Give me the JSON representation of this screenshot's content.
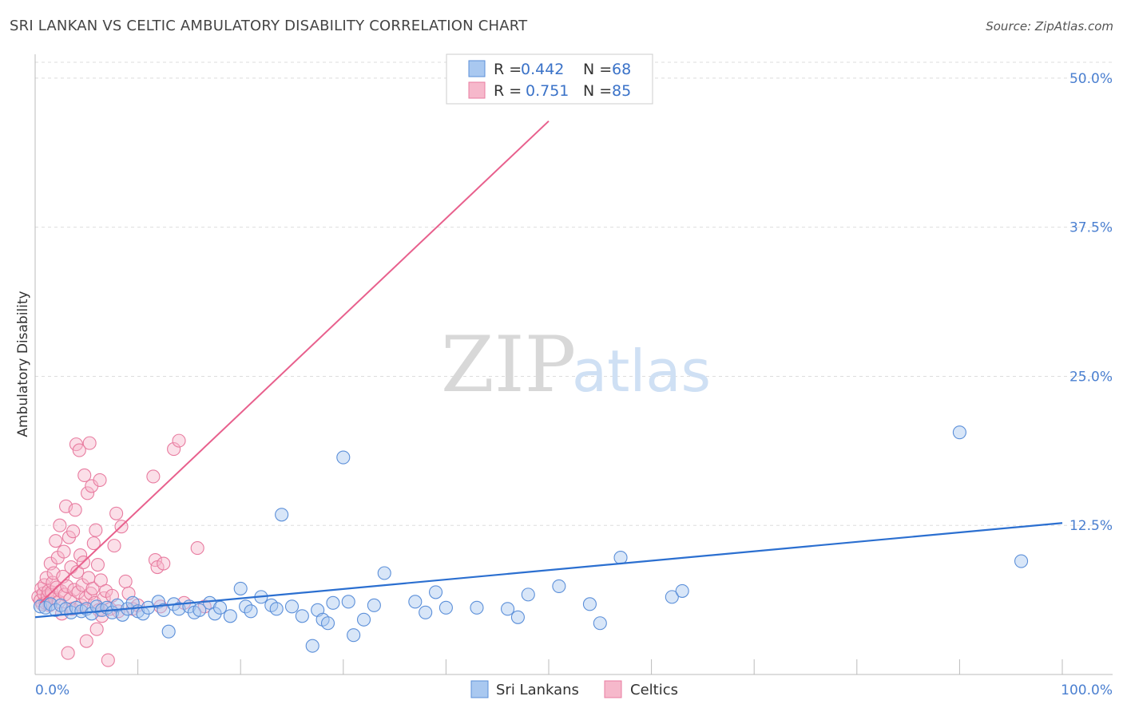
{
  "title": "SRI LANKAN VS CELTIC AMBULATORY DISABILITY CORRELATION CHART",
  "source": "Source: ZipAtlas.com",
  "watermark": {
    "zip": "ZIP",
    "atlas": "atlas"
  },
  "legend": {
    "rows": [
      {
        "r_label": "R =",
        "r_value": "0.442",
        "n_label": "N =",
        "n_value": "68"
      },
      {
        "r_label": "R =",
        "r_value": "0.751",
        "n_label": "N =",
        "n_value": "85"
      }
    ]
  },
  "bottom_legend": [
    "Sri Lankans",
    "Celtics"
  ],
  "colors": {
    "blue_fill": "#a9c8f0",
    "blue_stroke": "#5b8fd9",
    "blue_line": "#2b6fd0",
    "pink_fill": "#f6b8cb",
    "pink_stroke": "#e87ca0",
    "pink_line": "#e8608d",
    "tick_text": "#4a7fd0",
    "grid": "#dddddd"
  },
  "chart_data": {
    "type": "scatter",
    "title": "SRI LANKAN VS CELTIC AMBULATORY DISABILITY CORRELATION CHART",
    "xlabel": "",
    "ylabel": "Ambulatory Disability",
    "xlim": [
      0,
      100
    ],
    "ylim": [
      0,
      52
    ],
    "x_tick_labels": [
      "0.0%",
      "100.0%"
    ],
    "y_ticks": [
      12.5,
      25.0,
      37.5,
      50.0
    ],
    "y_tick_labels": [
      "12.5%",
      "25.0%",
      "37.5%",
      "50.0%"
    ],
    "grid": true,
    "legend_position": "top-center",
    "series": [
      {
        "name": "Sri Lankans",
        "r": 0.442,
        "n": 68,
        "trend": {
          "x": [
            0,
            100
          ],
          "y": [
            4.8,
            12.7
          ]
        },
        "points": [
          [
            0.5,
            5.7
          ],
          [
            1.0,
            5.6
          ],
          [
            1.5,
            5.9
          ],
          [
            2.0,
            5.4
          ],
          [
            2.5,
            5.8
          ],
          [
            3.0,
            5.5
          ],
          [
            3.5,
            5.2
          ],
          [
            4.0,
            5.6
          ],
          [
            4.5,
            5.3
          ],
          [
            5.0,
            5.5
          ],
          [
            5.5,
            5.1
          ],
          [
            6.0,
            5.7
          ],
          [
            6.5,
            5.4
          ],
          [
            7.0,
            5.6
          ],
          [
            7.5,
            5.2
          ],
          [
            8.0,
            5.8
          ],
          [
            8.5,
            5.0
          ],
          [
            9.0,
            5.5
          ],
          [
            9.5,
            6.0
          ],
          [
            10.0,
            5.3
          ],
          [
            10.5,
            5.1
          ],
          [
            11.0,
            5.6
          ],
          [
            12.0,
            6.1
          ],
          [
            12.5,
            5.4
          ],
          [
            13.0,
            3.6
          ],
          [
            13.5,
            5.9
          ],
          [
            14.0,
            5.5
          ],
          [
            15.0,
            5.7
          ],
          [
            15.5,
            5.2
          ],
          [
            16.0,
            5.4
          ],
          [
            17.0,
            6.0
          ],
          [
            17.5,
            5.1
          ],
          [
            18.0,
            5.6
          ],
          [
            19.0,
            4.9
          ],
          [
            20.0,
            7.2
          ],
          [
            20.5,
            5.7
          ],
          [
            21.0,
            5.3
          ],
          [
            22.0,
            6.5
          ],
          [
            23.0,
            5.8
          ],
          [
            23.5,
            5.5
          ],
          [
            24.0,
            13.4
          ],
          [
            25.0,
            5.7
          ],
          [
            26.0,
            4.9
          ],
          [
            27.0,
            2.4
          ],
          [
            27.5,
            5.4
          ],
          [
            28.0,
            4.6
          ],
          [
            28.5,
            4.3
          ],
          [
            29.0,
            6.0
          ],
          [
            30.0,
            18.2
          ],
          [
            30.5,
            6.1
          ],
          [
            31.0,
            3.3
          ],
          [
            32.0,
            4.6
          ],
          [
            33.0,
            5.8
          ],
          [
            34.0,
            8.5
          ],
          [
            37.0,
            6.1
          ],
          [
            38.0,
            5.2
          ],
          [
            39.0,
            6.9
          ],
          [
            40.0,
            5.6
          ],
          [
            43.0,
            5.6
          ],
          [
            46.0,
            5.5
          ],
          [
            47.0,
            4.8
          ],
          [
            48.0,
            6.7
          ],
          [
            51.0,
            7.4
          ],
          [
            54.0,
            5.9
          ],
          [
            55.0,
            4.3
          ],
          [
            57.0,
            9.8
          ],
          [
            62.0,
            6.5
          ],
          [
            63.0,
            7.0
          ],
          [
            90.0,
            20.3
          ],
          [
            96.0,
            9.5
          ]
        ]
      },
      {
        "name": "Celtics",
        "r": 0.751,
        "n": 85,
        "trend": {
          "x": [
            0.5,
            50.0
          ],
          "y": [
            6.0,
            46.4
          ]
        },
        "points": [
          [
            0.3,
            6.5
          ],
          [
            0.5,
            6.2
          ],
          [
            0.6,
            7.2
          ],
          [
            0.7,
            5.9
          ],
          [
            0.8,
            6.8
          ],
          [
            0.9,
            7.5
          ],
          [
            1.0,
            6.0
          ],
          [
            1.1,
            8.1
          ],
          [
            1.2,
            6.6
          ],
          [
            1.3,
            7.0
          ],
          [
            1.4,
            5.8
          ],
          [
            1.5,
            9.3
          ],
          [
            1.6,
            6.9
          ],
          [
            1.7,
            7.7
          ],
          [
            1.8,
            8.5
          ],
          [
            1.9,
            6.4
          ],
          [
            2.0,
            11.2
          ],
          [
            2.1,
            7.3
          ],
          [
            2.2,
            9.8
          ],
          [
            2.3,
            6.1
          ],
          [
            2.4,
            12.5
          ],
          [
            2.5,
            7.0
          ],
          [
            2.6,
            5.1
          ],
          [
            2.7,
            8.2
          ],
          [
            2.8,
            10.3
          ],
          [
            2.9,
            6.7
          ],
          [
            3.0,
            14.1
          ],
          [
            3.1,
            7.4
          ],
          [
            3.2,
            1.8
          ],
          [
            3.3,
            11.5
          ],
          [
            3.4,
            6.3
          ],
          [
            3.5,
            9.0
          ],
          [
            3.6,
            5.5
          ],
          [
            3.7,
            12.0
          ],
          [
            3.8,
            7.1
          ],
          [
            3.9,
            13.8
          ],
          [
            4.0,
            19.3
          ],
          [
            4.1,
            8.6
          ],
          [
            4.2,
            6.9
          ],
          [
            4.3,
            18.8
          ],
          [
            4.4,
            10.0
          ],
          [
            4.5,
            5.8
          ],
          [
            4.6,
            7.5
          ],
          [
            4.7,
            9.4
          ],
          [
            4.8,
            16.7
          ],
          [
            4.9,
            6.4
          ],
          [
            5.0,
            2.8
          ],
          [
            5.1,
            15.2
          ],
          [
            5.2,
            8.1
          ],
          [
            5.3,
            19.4
          ],
          [
            5.4,
            6.8
          ],
          [
            5.5,
            15.8
          ],
          [
            5.6,
            7.2
          ],
          [
            5.7,
            11.0
          ],
          [
            5.8,
            6.0
          ],
          [
            5.9,
            12.1
          ],
          [
            6.0,
            3.8
          ],
          [
            6.1,
            9.2
          ],
          [
            6.2,
            5.4
          ],
          [
            6.3,
            16.3
          ],
          [
            6.4,
            7.9
          ],
          [
            6.5,
            4.9
          ],
          [
            6.7,
            6.4
          ],
          [
            6.9,
            7.0
          ],
          [
            7.1,
            1.2
          ],
          [
            7.3,
            5.5
          ],
          [
            7.5,
            6.6
          ],
          [
            7.7,
            10.8
          ],
          [
            7.9,
            13.5
          ],
          [
            8.1,
            5.3
          ],
          [
            8.4,
            12.4
          ],
          [
            8.8,
            7.8
          ],
          [
            9.1,
            6.8
          ],
          [
            9.5,
            5.5
          ],
          [
            10.0,
            5.8
          ],
          [
            11.5,
            16.6
          ],
          [
            11.7,
            9.6
          ],
          [
            11.9,
            9.0
          ],
          [
            12.2,
            5.7
          ],
          [
            12.5,
            9.3
          ],
          [
            13.5,
            18.9
          ],
          [
            14.0,
            19.6
          ],
          [
            14.5,
            6.0
          ],
          [
            15.8,
            10.6
          ],
          [
            16.5,
            5.7
          ]
        ]
      }
    ]
  }
}
